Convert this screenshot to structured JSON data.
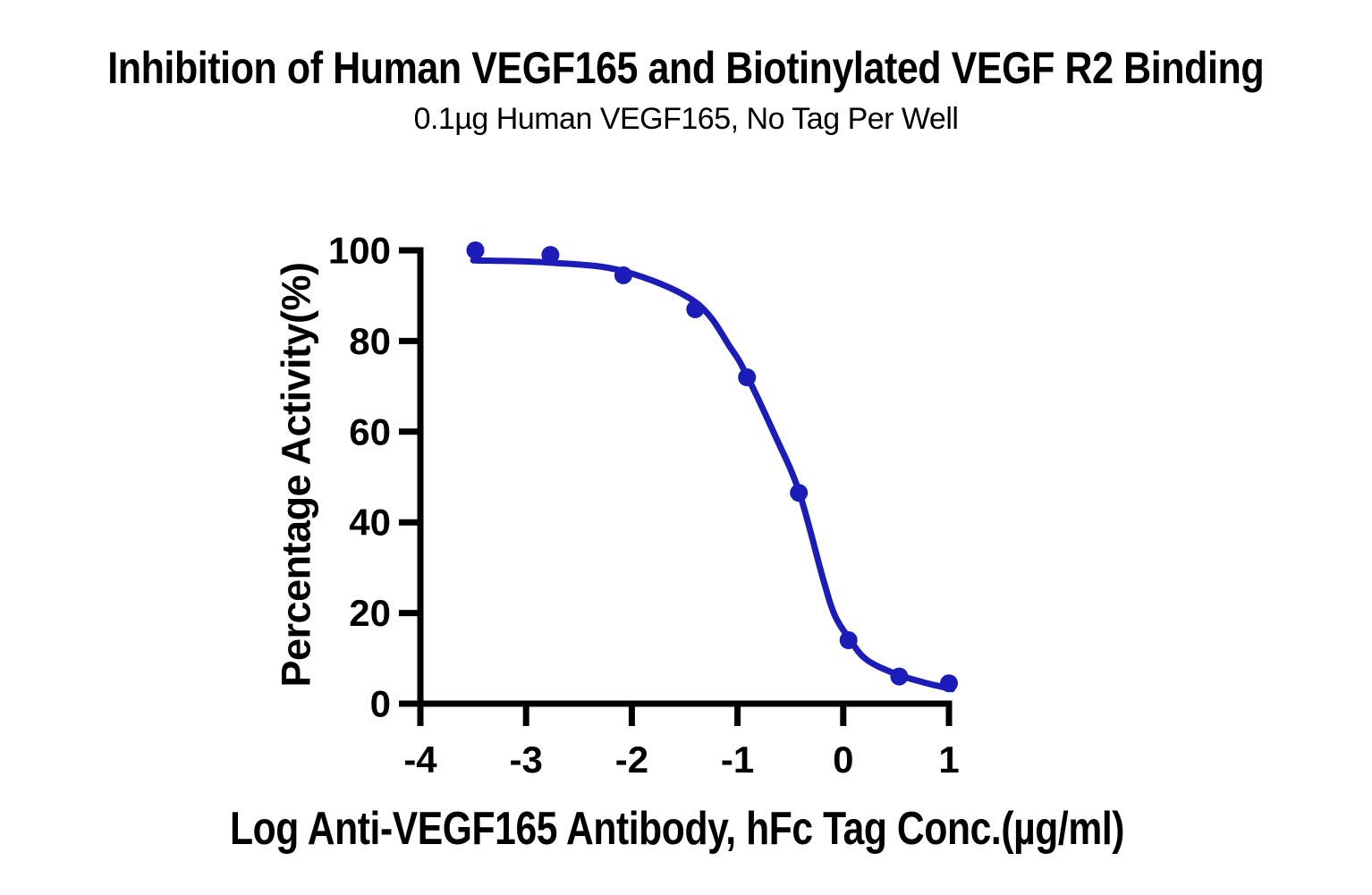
{
  "chart_data": {
    "type": "scatter",
    "title": "Inhibition of Human VEGF165 and Biotinylated VEGF R2 Binding",
    "subtitle": "0.1µg Human VEGF165, No Tag Per Well",
    "xlabel": "Log Anti-VEGF165 Antibody, hFc Tag Conc.(µg/ml)",
    "ylabel": "Percentage Activity(%)",
    "xlim": [
      -4,
      1
    ],
    "ylim": [
      0,
      100
    ],
    "x_ticks": [
      -4,
      -3,
      -2,
      -1,
      0,
      1
    ],
    "y_ticks": [
      0,
      20,
      40,
      60,
      80,
      100
    ],
    "grid": false,
    "legend": "none",
    "axis_color": "#000000",
    "series": [
      {
        "name": "Percentage Activity",
        "marker": "circle",
        "color": "#1c1cb8",
        "x": [
          -3.48,
          -2.77,
          -2.08,
          -1.4,
          -0.91,
          -0.42,
          0.05,
          0.53,
          1.0
        ],
        "y": [
          100,
          99,
          94.5,
          87,
          72,
          46.5,
          14,
          6,
          4.5
        ]
      }
    ],
    "fit_curve": {
      "color": "#1c1cb8",
      "points": [
        [
          -3.5,
          97.8
        ],
        [
          -2.77,
          97.3
        ],
        [
          -2.08,
          95.4
        ],
        [
          -1.4,
          88.6
        ],
        [
          -1.06,
          78.3
        ],
        [
          -0.91,
          72.3
        ],
        [
          -0.65,
          59.4
        ],
        [
          -0.42,
          46.9
        ],
        [
          -0.19,
          27.5
        ],
        [
          -0.08,
          19.5
        ],
        [
          0.05,
          14.6
        ],
        [
          0.21,
          9.9
        ],
        [
          0.48,
          6.7
        ],
        [
          0.76,
          4.7
        ],
        [
          1.03,
          3.2
        ]
      ]
    }
  }
}
